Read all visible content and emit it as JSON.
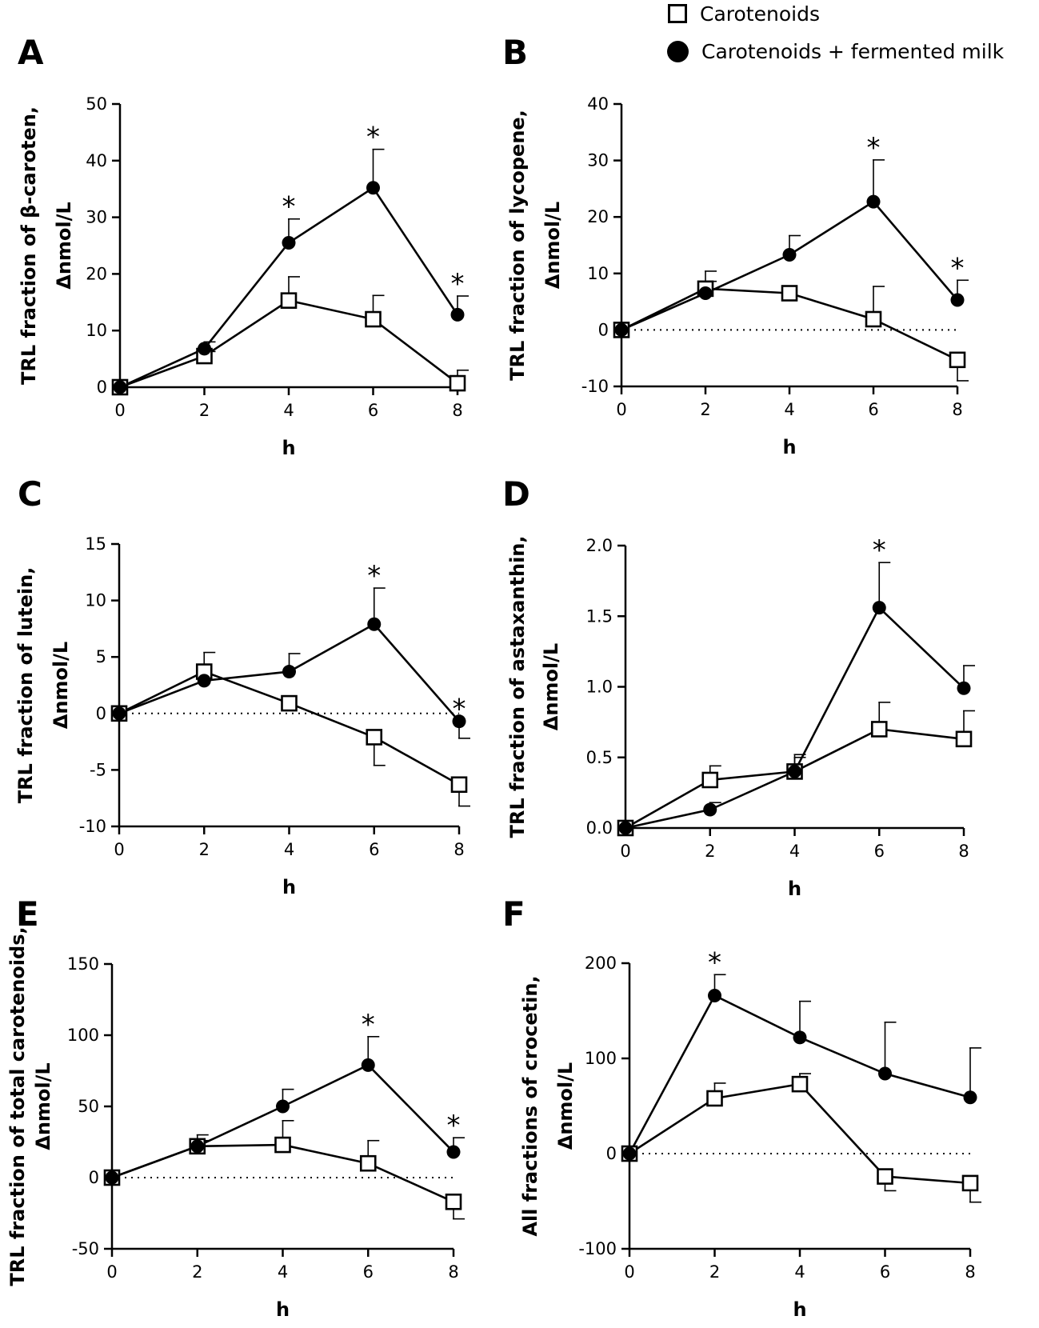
{
  "legend": {
    "carotenoids": "Carotenoids",
    "carotenoids_fermented": "Carotenoids + fermented milk"
  },
  "series_style": {
    "carotenoids": {
      "marker": "open-square",
      "color": "#000000"
    },
    "carotenoids_fermented": {
      "marker": "filled-circle",
      "color": "#000000"
    }
  },
  "chart_data": [
    {
      "panel": "A",
      "type": "line",
      "ylabel": [
        "TRL fraction of β-caroten,",
        "Δnmol/L"
      ],
      "xlabel": "h",
      "x": [
        0,
        2,
        4,
        6,
        8
      ],
      "xticks": [
        "0",
        "2",
        "4",
        "6",
        "8"
      ],
      "ylim": [
        0,
        50
      ],
      "yticks": [
        0,
        10,
        20,
        30,
        40,
        50
      ],
      "ytick_labels": [
        "0",
        "10",
        "20",
        "30",
        "40",
        "50"
      ],
      "zero_line": false,
      "series": [
        {
          "key": "carotenoids",
          "name": "Carotenoids",
          "values": [
            0,
            5.5,
            15.3,
            12.0,
            0.7
          ],
          "err": [
            0,
            0.8,
            4.2,
            4.2,
            2.3
          ]
        },
        {
          "key": "carotenoids_fermented",
          "name": "Carotenoids + fermented milk",
          "values": [
            0,
            6.8,
            25.5,
            35.2,
            12.8
          ],
          "err": [
            0,
            1.2,
            4.2,
            6.8,
            3.3
          ]
        }
      ],
      "significance": [
        {
          "x": 4,
          "label": "*"
        },
        {
          "x": 6,
          "label": "*"
        },
        {
          "x": 8,
          "label": "*"
        }
      ]
    },
    {
      "panel": "B",
      "type": "line",
      "ylabel": [
        "TRL fraction of lycopene,",
        "Δnmol/L"
      ],
      "xlabel": "h",
      "x": [
        0,
        2,
        4,
        6,
        8
      ],
      "xticks": [
        "0",
        "2",
        "4",
        "6",
        "8"
      ],
      "ylim": [
        -10,
        40
      ],
      "yticks": [
        -10,
        0,
        10,
        20,
        30,
        40
      ],
      "ytick_labels": [
        "-10",
        "0",
        "10",
        "20",
        "30",
        "40"
      ],
      "zero_line": true,
      "series": [
        {
          "key": "carotenoids",
          "name": "Carotenoids",
          "values": [
            0,
            7.3,
            6.5,
            1.9,
            -5.3
          ],
          "err": [
            0,
            1.3,
            0,
            5.8,
            3.7
          ]
        },
        {
          "key": "carotenoids_fermented",
          "name": "Carotenoids + fermented milk",
          "values": [
            0,
            6.5,
            13.3,
            22.7,
            5.3
          ],
          "err": [
            0,
            3.9,
            3.4,
            7.4,
            3.5
          ]
        }
      ],
      "significance": [
        {
          "x": 6,
          "label": "*"
        },
        {
          "x": 8,
          "label": "*"
        }
      ]
    },
    {
      "panel": "C",
      "type": "line",
      "ylabel": [
        "TRL fraction of lutein,",
        "Δnmol/L"
      ],
      "xlabel": "h",
      "x": [
        0,
        2,
        4,
        6,
        8
      ],
      "xticks": [
        "0",
        "2",
        "4",
        "6",
        "8"
      ],
      "ylim": [
        -10,
        15
      ],
      "yticks": [
        -10,
        -5,
        0,
        5,
        10,
        15
      ],
      "ytick_labels": [
        "-10",
        "-5",
        "0",
        "5",
        "10",
        "15"
      ],
      "zero_line": true,
      "series": [
        {
          "key": "carotenoids",
          "name": "Carotenoids",
          "values": [
            0,
            3.7,
            0.9,
            -2.1,
            -6.3
          ],
          "err": [
            0,
            1.7,
            0,
            2.5,
            1.9
          ]
        },
        {
          "key": "carotenoids_fermented",
          "name": "Carotenoids + fermented milk",
          "values": [
            0,
            2.9,
            3.7,
            7.9,
            -0.7
          ],
          "err": [
            0,
            0,
            1.6,
            3.2,
            1.5
          ]
        }
      ],
      "significance": [
        {
          "x": 6,
          "label": "*"
        },
        {
          "x": 8,
          "label": "*"
        }
      ]
    },
    {
      "panel": "D",
      "type": "line",
      "ylabel": [
        "TRL fraction of astaxanthin,",
        "Δnmol/L"
      ],
      "xlabel": "h",
      "x": [
        0,
        2,
        4,
        6,
        8
      ],
      "xticks": [
        "0",
        "2",
        "4",
        "6",
        "8"
      ],
      "ylim": [
        0,
        2.0
      ],
      "yticks": [
        0,
        0.5,
        1.0,
        1.5,
        2.0
      ],
      "ytick_labels": [
        "0.0",
        "0.5",
        "1.0",
        "1.5",
        "2.0"
      ],
      "zero_line": false,
      "series": [
        {
          "key": "carotenoids",
          "name": "Carotenoids",
          "values": [
            0,
            0.34,
            0.4,
            0.7,
            0.63
          ],
          "err": [
            0,
            0.1,
            0.12,
            0.19,
            0.2
          ]
        },
        {
          "key": "carotenoids_fermented",
          "name": "Carotenoids + fermented milk",
          "values": [
            0,
            0.13,
            0.4,
            1.56,
            0.99
          ],
          "err": [
            0,
            0.05,
            0.1,
            0.32,
            0.16
          ]
        }
      ],
      "significance": [
        {
          "x": 6,
          "label": "*"
        }
      ]
    },
    {
      "panel": "E",
      "type": "line",
      "ylabel": [
        "TRL fraction of total carotenoids,",
        "Δnmol/L"
      ],
      "xlabel": "h",
      "x": [
        0,
        2,
        4,
        6,
        8
      ],
      "xticks": [
        "0",
        "2",
        "4",
        "6",
        "8"
      ],
      "ylim": [
        -50,
        150
      ],
      "yticks": [
        -50,
        0,
        50,
        100,
        150
      ],
      "ytick_labels": [
        "-50",
        "0",
        "50",
        "100",
        "150"
      ],
      "zero_line": true,
      "series": [
        {
          "key": "carotenoids",
          "name": "Carotenoids",
          "values": [
            0,
            22,
            23,
            10,
            -17
          ],
          "err": [
            0,
            8,
            17,
            16,
            12
          ]
        },
        {
          "key": "carotenoids_fermented",
          "name": "Carotenoids + fermented milk",
          "values": [
            0,
            22,
            50,
            79,
            18
          ],
          "err": [
            0,
            4,
            12,
            20,
            10
          ]
        }
      ],
      "significance": [
        {
          "x": 6,
          "label": "*"
        },
        {
          "x": 8,
          "label": "*"
        }
      ]
    },
    {
      "panel": "F",
      "type": "line",
      "ylabel": [
        "All fractions of crocetin,",
        "Δnmol/L"
      ],
      "xlabel": "h",
      "x": [
        0,
        2,
        4,
        6,
        8
      ],
      "xticks": [
        "0",
        "2",
        "4",
        "6",
        "8"
      ],
      "ylim": [
        -100,
        200
      ],
      "yticks": [
        -100,
        0,
        100,
        200
      ],
      "ytick_labels": [
        "-100",
        "0",
        "100",
        "200"
      ],
      "zero_line": true,
      "series": [
        {
          "key": "carotenoids",
          "name": "Carotenoids",
          "values": [
            0,
            58,
            73,
            -24,
            -31
          ],
          "err": [
            0,
            16,
            11,
            15,
            20
          ]
        },
        {
          "key": "carotenoids_fermented",
          "name": "Carotenoids + fermented milk",
          "values": [
            0,
            166,
            122,
            84,
            59
          ],
          "err": [
            0,
            22,
            38,
            54,
            52
          ]
        }
      ],
      "significance": [
        {
          "x": 2,
          "label": "*"
        }
      ]
    }
  ]
}
